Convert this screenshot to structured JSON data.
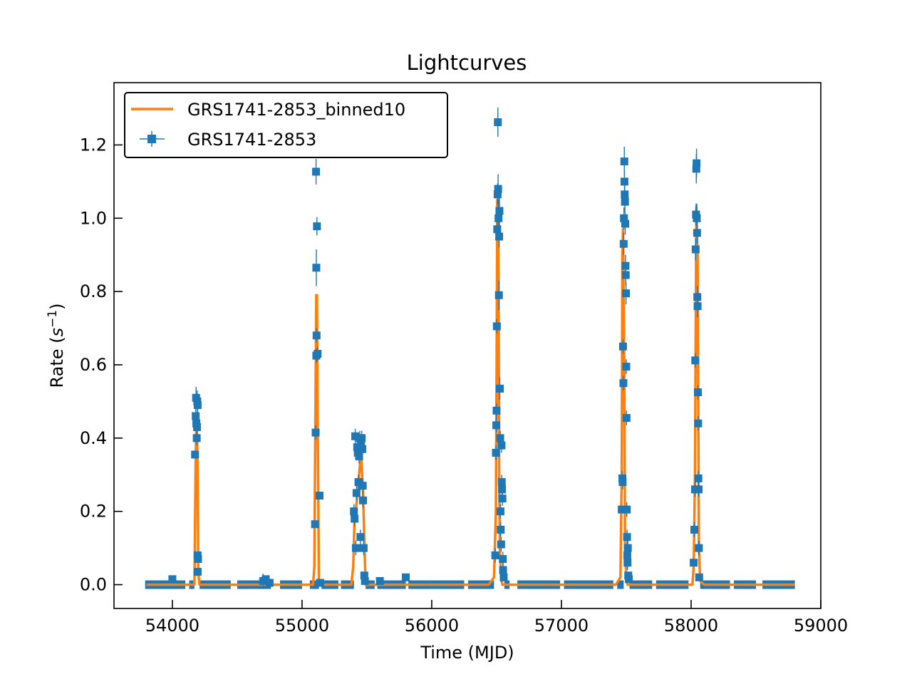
{
  "chart_data": {
    "type": "scatter",
    "title": "Lightcurves",
    "xlabel": "Time (MJD)",
    "ylabel_main": "Rate (",
    "ylabel_unit": "s",
    "ylabel_exp": "−1",
    "ylabel_close": ")",
    "xlim": [
      53550,
      59000
    ],
    "ylim": [
      -0.065,
      1.37
    ],
    "xticks": [
      54000,
      55000,
      56000,
      57000,
      58000,
      59000
    ],
    "yticks": [
      0.0,
      0.2,
      0.4,
      0.6,
      0.8,
      1.0,
      1.2
    ],
    "xtick_labels": [
      "54000",
      "55000",
      "56000",
      "57000",
      "58000",
      "59000"
    ],
    "ytick_labels": [
      "0.0",
      "0.2",
      "0.4",
      "0.6",
      "0.8",
      "1.0",
      "1.2"
    ],
    "legend_position": "top-left",
    "colors": {
      "binned": "#ff7f0e",
      "raw": "#1f77b4"
    },
    "series": [
      {
        "name": "GRS1741-2853_binned10",
        "style": "line",
        "x": [
          53800,
          54100,
          54150,
          54170,
          54180,
          54185,
          54190,
          54195,
          54200,
          54210,
          54230,
          55060,
          55085,
          55095,
          55105,
          55110,
          55115,
          55120,
          55125,
          55130,
          55140,
          55380,
          55395,
          55405,
          55420,
          55440,
          55455,
          55470,
          55490,
          55500,
          55520,
          56440,
          56480,
          56495,
          56500,
          56505,
          56510,
          56515,
          56520,
          56525,
          56535,
          56545,
          56560,
          57420,
          57455,
          57465,
          57470,
          57475,
          57485,
          57490,
          57500,
          57510,
          57520,
          57990,
          58010,
          58020,
          58030,
          58040,
          58050,
          58060,
          58070,
          58100,
          58800
        ],
        "y": [
          0.0,
          0.0,
          0.0,
          0.0,
          0.35,
          0.45,
          0.42,
          0.3,
          0.03,
          0.0,
          0.0,
          0.0,
          0.0,
          0.05,
          0.55,
          0.79,
          0.79,
          0.45,
          0.25,
          0.0,
          0.0,
          0.0,
          0.05,
          0.18,
          0.22,
          0.3,
          0.36,
          0.25,
          0.0,
          0.0,
          0.0,
          0.0,
          0.02,
          0.2,
          0.6,
          1.05,
          1.05,
          0.86,
          0.3,
          0.1,
          0.02,
          0.0,
          0.0,
          0.0,
          0.02,
          0.3,
          0.9,
          0.97,
          0.6,
          0.1,
          0.02,
          0.0,
          0.0,
          0.0,
          0.0,
          0.05,
          0.3,
          1.03,
          0.9,
          0.1,
          0.01,
          0.0,
          0.0
        ]
      },
      {
        "name": "GRS1741-2853",
        "style": "errorbar",
        "points": [
          [
            54175,
            0.355,
            0.01
          ],
          [
            54180,
            0.46,
            0.02
          ],
          [
            54183,
            0.51,
            0.03
          ],
          [
            54185,
            0.44,
            0.02
          ],
          [
            54190,
            0.43,
            0.02
          ],
          [
            54192,
            0.5,
            0.03
          ],
          [
            54195,
            0.49,
            0.03
          ],
          [
            54188,
            0.4,
            0.02
          ],
          [
            54195,
            0.08,
            0.01
          ],
          [
            54198,
            0.07,
            0.01
          ],
          [
            54195,
            0.035,
            0.01
          ],
          [
            54000,
            0.015,
            0.005
          ],
          [
            54700,
            0.01,
            0.02
          ],
          [
            54720,
            0.015,
            0.005
          ],
          [
            54750,
            0.005,
            0.005
          ],
          [
            55100,
            0.165,
            0.01
          ],
          [
            55105,
            0.415,
            0.02
          ],
          [
            55110,
            0.625,
            0.02
          ],
          [
            55112,
            0.68,
            0.02
          ],
          [
            55110,
            0.865,
            0.05
          ],
          [
            55115,
            0.978,
            0.025
          ],
          [
            55108,
            1.127,
            0.035
          ],
          [
            55120,
            0.63,
            0.02
          ],
          [
            55135,
            0.243,
            0.01
          ],
          [
            55140,
            0.005,
            0.005
          ],
          [
            55400,
            0.2,
            0.02
          ],
          [
            55405,
            0.18,
            0.02
          ],
          [
            55410,
            0.405,
            0.02
          ],
          [
            55415,
            0.1,
            0.02
          ],
          [
            55420,
            0.25,
            0.02
          ],
          [
            55425,
            0.375,
            0.02
          ],
          [
            55430,
            0.36,
            0.02
          ],
          [
            55435,
            0.28,
            0.02
          ],
          [
            55440,
            0.35,
            0.02
          ],
          [
            55445,
            0.4,
            0.02
          ],
          [
            55450,
            0.13,
            0.02
          ],
          [
            55455,
            0.38,
            0.02
          ],
          [
            55460,
            0.4,
            0.02
          ],
          [
            55465,
            0.37,
            0.02
          ],
          [
            55468,
            0.27,
            0.02
          ],
          [
            55470,
            0.23,
            0.02
          ],
          [
            55475,
            0.1,
            0.02
          ],
          [
            55480,
            0.025,
            0.01
          ],
          [
            55485,
            0.01,
            0.005
          ],
          [
            55800,
            0.02,
            0.005
          ],
          [
            55600,
            0.01,
            0.005
          ],
          [
            56490,
            0.08,
            0.02
          ],
          [
            56495,
            0.36,
            0.02
          ],
          [
            56498,
            0.435,
            0.02
          ],
          [
            56500,
            0.475,
            0.02
          ],
          [
            56502,
            0.705,
            0.02
          ],
          [
            56505,
            0.97,
            0.03
          ],
          [
            56508,
            1.065,
            0.03
          ],
          [
            56510,
            1.262,
            0.04
          ],
          [
            56512,
            1.08,
            0.04
          ],
          [
            56515,
            1.0,
            0.05
          ],
          [
            56518,
            0.79,
            0.04
          ],
          [
            56520,
            0.95,
            0.03
          ],
          [
            56522,
            1.02,
            0.04
          ],
          [
            56525,
            0.535,
            0.03
          ],
          [
            56528,
            0.4,
            0.02
          ],
          [
            56530,
            0.2,
            0.02
          ],
          [
            56532,
            0.15,
            0.02
          ],
          [
            56535,
            0.11,
            0.02
          ],
          [
            56538,
            0.38,
            0.02
          ],
          [
            56540,
            0.28,
            0.02
          ],
          [
            56542,
            0.26,
            0.02
          ],
          [
            56545,
            0.235,
            0.02
          ],
          [
            56548,
            0.07,
            0.02
          ],
          [
            56550,
            0.04,
            0.02
          ],
          [
            56555,
            0.02,
            0.01
          ],
          [
            57465,
            0.205,
            0.01
          ],
          [
            57470,
            0.29,
            0.02
          ],
          [
            57472,
            0.28,
            0.02
          ],
          [
            57475,
            0.65,
            0.02
          ],
          [
            57478,
            0.55,
            0.02
          ],
          [
            57480,
            0.93,
            0.03
          ],
          [
            57482,
            1.0,
            0.03
          ],
          [
            57485,
            1.155,
            0.04
          ],
          [
            57486,
            1.1,
            0.03
          ],
          [
            57488,
            1.065,
            0.03
          ],
          [
            57490,
            1.045,
            0.03
          ],
          [
            57492,
            0.985,
            0.03
          ],
          [
            57494,
            0.87,
            0.03
          ],
          [
            57496,
            0.845,
            0.03
          ],
          [
            57498,
            0.795,
            0.03
          ],
          [
            57500,
            0.595,
            0.02
          ],
          [
            57502,
            0.455,
            0.02
          ],
          [
            57504,
            0.205,
            0.02
          ],
          [
            57506,
            0.13,
            0.02
          ],
          [
            57508,
            0.08,
            0.02
          ],
          [
            57510,
            0.06,
            0.02
          ],
          [
            57512,
            0.1,
            0.02
          ],
          [
            57515,
            0.025,
            0.01
          ],
          [
            57520,
            0.015,
            0.005
          ],
          [
            58020,
            0.06,
            0.01
          ],
          [
            58025,
            0.15,
            0.02
          ],
          [
            58030,
            0.26,
            0.02
          ],
          [
            58032,
            0.612,
            0.02
          ],
          [
            58035,
            0.915,
            0.03
          ],
          [
            58038,
            1.01,
            0.03
          ],
          [
            58040,
            1.135,
            0.04
          ],
          [
            58042,
            1.15,
            0.04
          ],
          [
            58044,
            1.0,
            0.04
          ],
          [
            58046,
            0.96,
            0.03
          ],
          [
            58048,
            0.785,
            0.03
          ],
          [
            58050,
            0.76,
            0.03
          ],
          [
            58052,
            0.525,
            0.02
          ],
          [
            58054,
            0.44,
            0.02
          ],
          [
            58056,
            0.29,
            0.02
          ],
          [
            58058,
            0.26,
            0.02
          ],
          [
            58060,
            0.1,
            0.02
          ],
          [
            58062,
            0.02,
            0.01
          ]
        ],
        "baseline_segments": [
          [
            53790,
            54100
          ],
          [
            54130,
            54170
          ],
          [
            54210,
            54450
          ],
          [
            54500,
            54760
          ],
          [
            54830,
            55000
          ],
          [
            55060,
            55130
          ],
          [
            55150,
            55280
          ],
          [
            55300,
            55400
          ],
          [
            55490,
            55560
          ],
          [
            55580,
            55800
          ],
          [
            55820,
            56000
          ],
          [
            56000,
            56250
          ],
          [
            56280,
            56480
          ],
          [
            56560,
            56600
          ],
          [
            56660,
            56990
          ],
          [
            57020,
            57400
          ],
          [
            57430,
            57480
          ],
          [
            57525,
            57700
          ],
          [
            57730,
            57980
          ],
          [
            58070,
            58300
          ],
          [
            58330,
            58500
          ],
          [
            58550,
            58800
          ]
        ]
      }
    ]
  }
}
